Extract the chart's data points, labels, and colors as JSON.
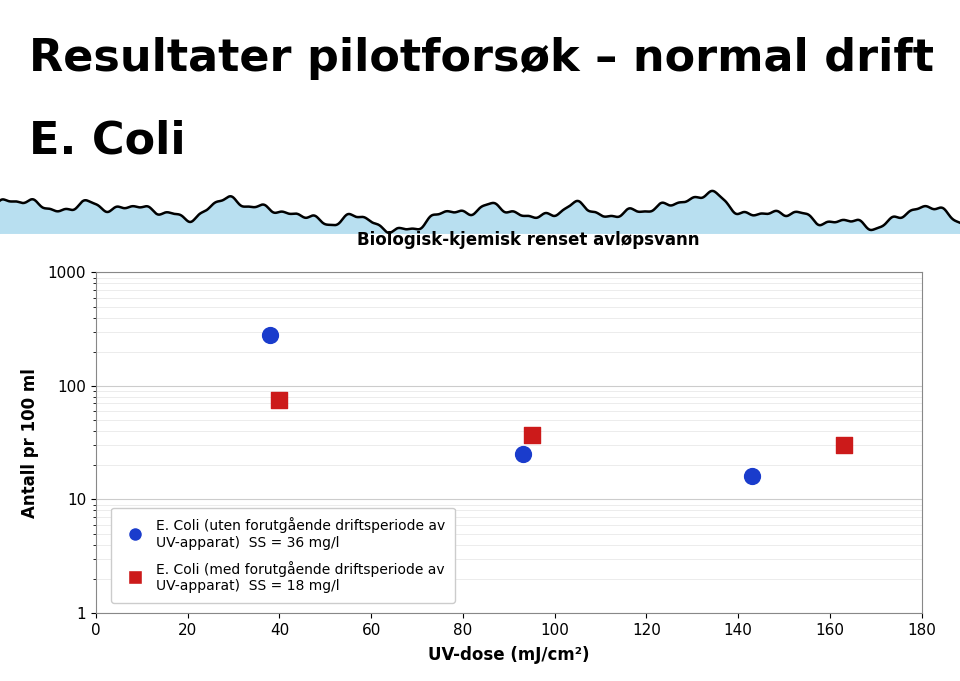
{
  "title_line1": "Resultater pilotforsøk – normal drift",
  "title_line2": "E. Coli",
  "subtitle": "Biologisk-kjemisk renset avløpsvann",
  "xlabel": "UV-dose (mJ/cm²)",
  "ylabel": "Antall pr 100 ml",
  "xlim": [
    0,
    180
  ],
  "ylim": [
    1,
    1000
  ],
  "xticks": [
    0,
    20,
    40,
    60,
    80,
    100,
    120,
    140,
    160,
    180
  ],
  "series1_label_line1": "E. Coli (uten forutgående driftsperiode av",
  "series1_label_line2": "UV-apparat)  SS = 36 mg/l",
  "series2_label_line1": "E. Coli (med forutgående driftsperiode av",
  "series2_label_line2": "UV-apparat)  SS = 18 mg/l",
  "series1_x": [
    38,
    93,
    143
  ],
  "series1_y": [
    280,
    25,
    16
  ],
  "series2_x": [
    40,
    95,
    163
  ],
  "series2_y": [
    75,
    37,
    30
  ],
  "series1_color": "#1a3ccc",
  "series2_color": "#cc1a1a",
  "bg_color": "#ffffff",
  "plot_bg_color": "#ffffff",
  "title_fontsize": 32,
  "subtitle_fontsize": 12,
  "axis_label_fontsize": 12,
  "tick_fontsize": 11,
  "legend_fontsize": 10,
  "wave_color_fill": "#b8dff0",
  "wave_color_line": "#000000",
  "grid_color_major": "#cccccc",
  "grid_color_minor": "#e5e5e5"
}
